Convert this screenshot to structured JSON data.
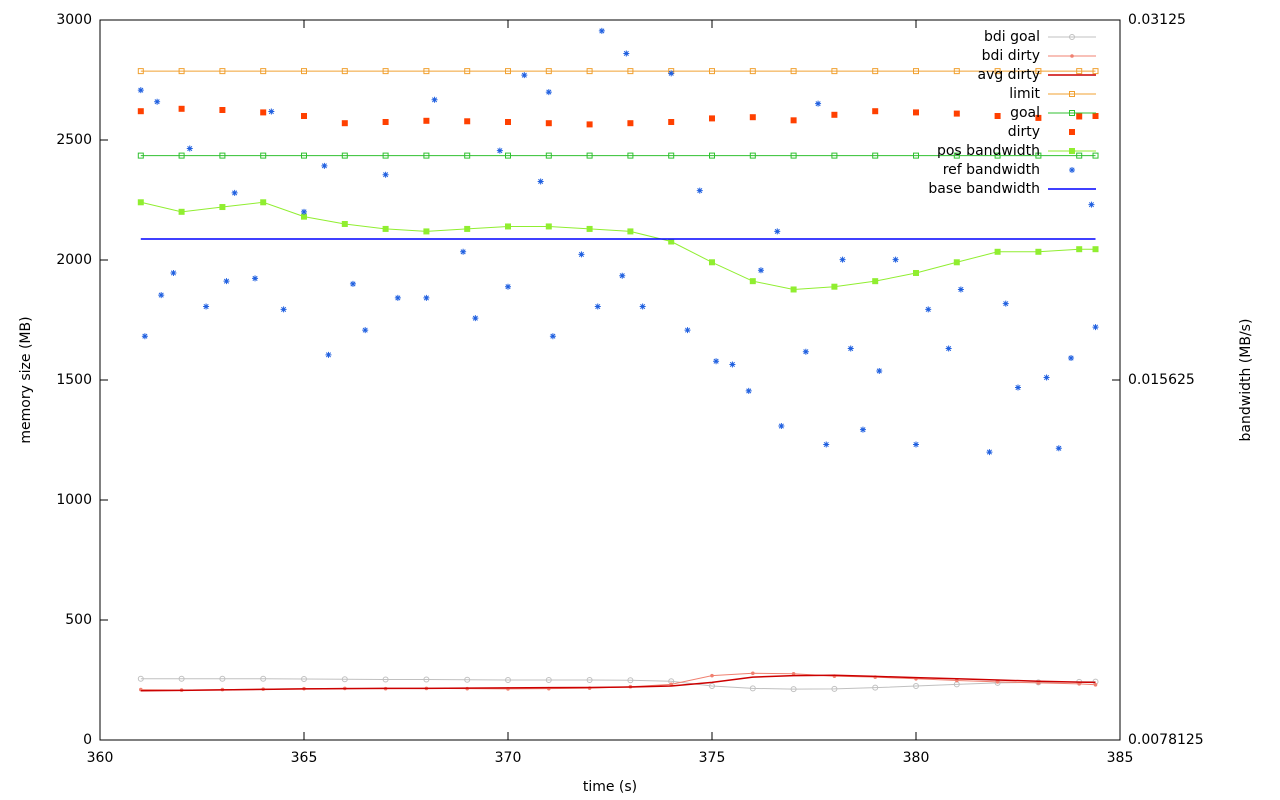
{
  "chart_data": {
    "type": "line",
    "x_label": "time (s)",
    "y_label": "memory size (MB)",
    "y2_label": "bandwidth (MB/s)",
    "xlim": [
      360,
      385
    ],
    "xticks": [
      360,
      365,
      370,
      375,
      380,
      385
    ],
    "ylim": [
      0,
      3000
    ],
    "yticks": [
      0,
      500,
      1000,
      1500,
      2000,
      2500,
      3000
    ],
    "y2lim": [
      0.0078125,
      0.03125
    ],
    "y2ticks": [
      0.0078125,
      0.015625,
      0.03125
    ],
    "y2log": true,
    "legend": "top-right",
    "x": [
      361,
      362,
      363,
      364,
      365,
      366,
      367,
      368,
      369,
      370,
      371,
      372,
      373,
      374,
      375,
      376,
      377,
      378,
      379,
      380,
      381,
      382,
      383,
      384,
      384.4
    ],
    "series": [
      {
        "name": "bdi goal",
        "color": "#c0c0c0",
        "style": "linespoints",
        "marker": "circle",
        "values": [
          255,
          255,
          255,
          255,
          254,
          253,
          252,
          252,
          251,
          250,
          250,
          250,
          249,
          245,
          225,
          215,
          212,
          213,
          218,
          225,
          232,
          238,
          240,
          242,
          243
        ]
      },
      {
        "name": "bdi dirty",
        "color": "#f08070",
        "style": "linespoints",
        "marker": "dot",
        "values": [
          210,
          208,
          210,
          212,
          214,
          215,
          214,
          215,
          214,
          213,
          214,
          216,
          222,
          232,
          268,
          278,
          276,
          266,
          262,
          255,
          248,
          242,
          238,
          234,
          230
        ]
      },
      {
        "name": "avg dirty",
        "color": "#cc0000",
        "style": "lines",
        "values": [
          205,
          207,
          209,
          211,
          213,
          214,
          215,
          215,
          216,
          217,
          218,
          219,
          221,
          225,
          240,
          262,
          268,
          270,
          265,
          260,
          255,
          250,
          245,
          241,
          240
        ]
      },
      {
        "name": "limit",
        "color": "#f0a030",
        "style": "linespoints",
        "marker": "square",
        "values": [
          2787,
          2787,
          2787,
          2787,
          2787,
          2787,
          2787,
          2787,
          2787,
          2787,
          2787,
          2787,
          2787,
          2787,
          2787,
          2787,
          2787,
          2787,
          2787,
          2787,
          2787,
          2787,
          2787,
          2787,
          2787
        ]
      },
      {
        "name": "goal",
        "color": "#30c030",
        "style": "linespoints",
        "marker": "square",
        "values": [
          2435,
          2435,
          2435,
          2435,
          2435,
          2435,
          2435,
          2435,
          2435,
          2435,
          2435,
          2435,
          2435,
          2435,
          2435,
          2435,
          2435,
          2435,
          2435,
          2435,
          2435,
          2435,
          2435,
          2435,
          2435
        ]
      },
      {
        "name": "dirty",
        "color": "#ff4000",
        "style": "points",
        "marker": "filled-square",
        "values": [
          2620,
          2630,
          2625,
          2615,
          2600,
          2570,
          2575,
          2580,
          2578,
          2575,
          2570,
          2565,
          2570,
          2575,
          2590,
          2595,
          2582,
          2605,
          2620,
          2615,
          2610,
          2600,
          2592,
          2598,
          2600
        ]
      },
      {
        "name": "pos bandwidth",
        "color": "#90ee30",
        "style": "linespoints",
        "marker": "filled-square",
        "axis": "y2",
        "values": [
          0.022,
          0.0216,
          0.0218,
          0.022,
          0.0214,
          0.0211,
          0.0209,
          0.0208,
          0.0209,
          0.021,
          0.021,
          0.0209,
          0.0208,
          0.0204,
          0.0196,
          0.0189,
          0.0186,
          0.0187,
          0.0189,
          0.0192,
          0.0196,
          0.02,
          0.02,
          0.0201,
          0.0201
        ]
      },
      {
        "name": "ref bandwidth",
        "color": "#2060e0",
        "style": "points",
        "marker": "star",
        "axis": "y2",
        "x": [
          361.0,
          361.1,
          361.4,
          361.5,
          361.8,
          362.2,
          362.6,
          363.1,
          363.3,
          363.8,
          364.2,
          364.5,
          365.0,
          365.5,
          365.6,
          366.2,
          366.5,
          367.0,
          367.3,
          368.0,
          368.2,
          368.9,
          369.2,
          369.8,
          370.0,
          370.4,
          370.8,
          371.0,
          371.1,
          371.8,
          372.2,
          372.3,
          372.8,
          372.9,
          373.3,
          374.0,
          374.4,
          374.7,
          375.1,
          375.5,
          375.9,
          376.2,
          376.6,
          376.7,
          377.3,
          377.6,
          377.8,
          378.2,
          378.4,
          378.7,
          379.1,
          379.5,
          380.0,
          380.3,
          380.8,
          381.1,
          381.8,
          382.2,
          382.5,
          383.2,
          383.5,
          383.8,
          384.3,
          384.4
        ],
        "values": [
          0.0273,
          0.017,
          0.0267,
          0.0184,
          0.0192,
          0.0244,
          0.018,
          0.0189,
          0.0224,
          0.019,
          0.0262,
          0.0179,
          0.0216,
          0.0236,
          0.0164,
          0.0188,
          0.0172,
          0.0232,
          0.0183,
          0.0183,
          0.0268,
          0.02,
          0.0176,
          0.0243,
          0.0187,
          0.0281,
          0.0229,
          0.0272,
          0.017,
          0.0199,
          0.018,
          0.0306,
          0.0191,
          0.0293,
          0.018,
          0.0282,
          0.0172,
          0.0225,
          0.0162,
          0.0161,
          0.0153,
          0.0193,
          0.0208,
          0.0143,
          0.0165,
          0.0266,
          0.0138,
          0.0197,
          0.0166,
          0.0142,
          0.0159,
          0.0197,
          0.0138,
          0.0179,
          0.0166,
          0.0186,
          0.0136,
          0.0181,
          0.0154,
          0.0157,
          0.0137,
          0.0163,
          0.0219,
          0.0173
        ]
      },
      {
        "name": "base bandwidth",
        "color": "#0000ff",
        "style": "lines",
        "axis": "y2",
        "values": [
          0.0205,
          0.0205,
          0.0205,
          0.0205,
          0.0205,
          0.0205,
          0.0205,
          0.0205,
          0.0205,
          0.0205,
          0.0205,
          0.0205,
          0.0205,
          0.0205,
          0.0205,
          0.0205,
          0.0205,
          0.0205,
          0.0205,
          0.0205,
          0.0205,
          0.0205,
          0.0205,
          0.0205,
          0.0205
        ]
      }
    ]
  }
}
